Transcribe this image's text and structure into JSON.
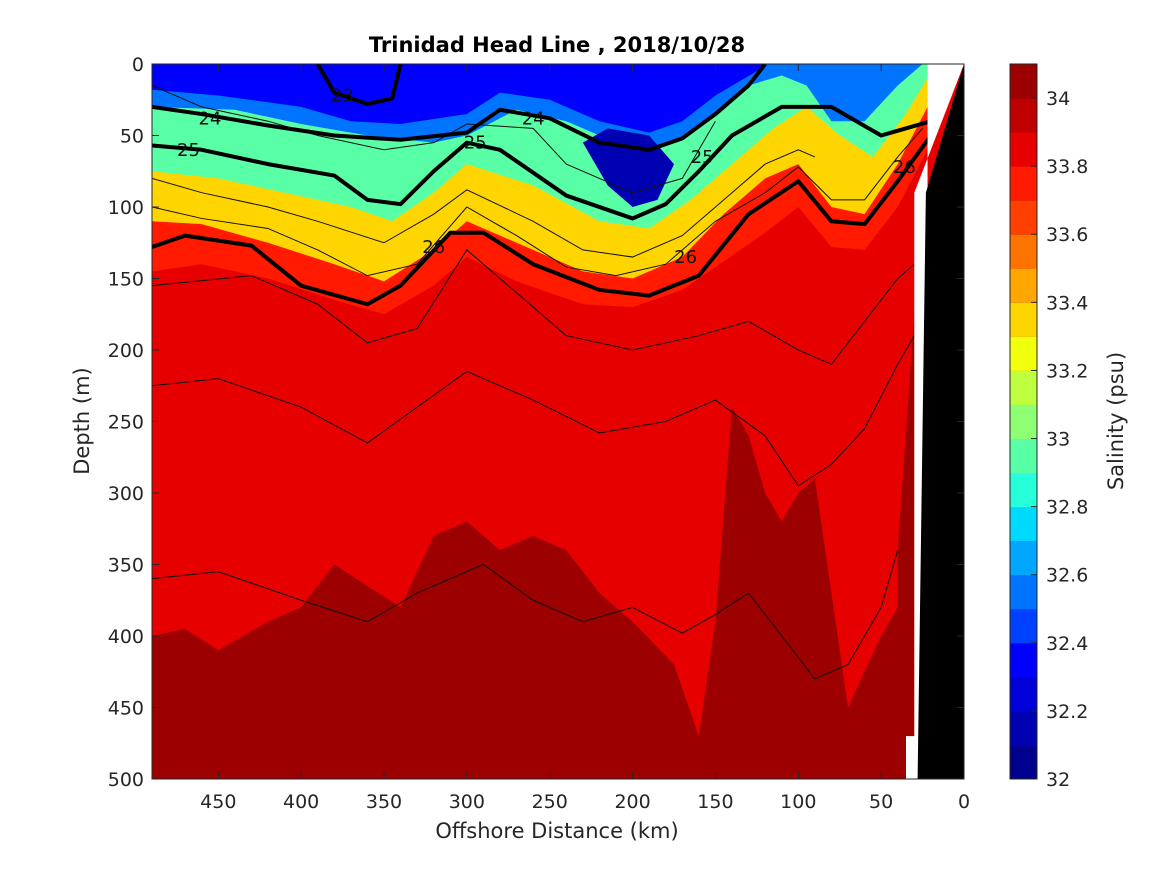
{
  "chart_data": {
    "type": "contour",
    "title": "Trinidad Head Line , 2018/10/28",
    "xlabel": "Offshore Distance (km)",
    "ylabel": "Depth (m)",
    "colorbar_label": "Salinity (psu)",
    "xlim": [
      490,
      0
    ],
    "ylim": [
      0,
      500
    ],
    "x_ticks": [
      "450",
      "400",
      "350",
      "300",
      "250",
      "200",
      "150",
      "100",
      "50",
      "0"
    ],
    "y_ticks": [
      "0",
      "50",
      "100",
      "150",
      "200",
      "250",
      "300",
      "350",
      "400",
      "450",
      "500"
    ],
    "colorbar_ticks": [
      "34",
      "33.8",
      "33.6",
      "33.4",
      "33.2",
      "33",
      "32.8",
      "32.6",
      "32.4",
      "32.2",
      "32"
    ],
    "colorbar_range": [
      32,
      34.1
    ],
    "colorbar_levels": [
      "#00008f",
      "#0000b3",
      "#0000d9",
      "#0000ff",
      "#0040ff",
      "#0073ff",
      "#00a6ff",
      "#00d9ff",
      "#26ffd9",
      "#59ffa6",
      "#8cff73",
      "#bfff40",
      "#f2ff0d",
      "#ffd500",
      "#ffa600",
      "#ff7300",
      "#ff4000",
      "#ff1a00",
      "#e60000",
      "#bf0000",
      "#9c0000"
    ],
    "isopycnal_labels": [
      {
        "label": "23",
        "x": 375,
        "y": 22
      },
      {
        "label": "24",
        "x": 455,
        "y": 38
      },
      {
        "label": "24",
        "x": 260,
        "y": 38
      },
      {
        "label": "25",
        "x": 468,
        "y": 60
      },
      {
        "label": "25",
        "x": 295,
        "y": 55
      },
      {
        "label": "25",
        "x": 158,
        "y": 65
      },
      {
        "label": "26",
        "x": 320,
        "y": 128
      },
      {
        "label": "26",
        "x": 168,
        "y": 135
      },
      {
        "label": "26",
        "x": 36,
        "y": 72
      }
    ],
    "isopycnals": [
      {
        "level": "23",
        "x": [
          390,
          380,
          360,
          345,
          340
        ],
        "y": [
          0,
          20,
          28,
          24,
          0
        ]
      },
      {
        "level": "24",
        "x": [
          490,
          460,
          420,
          380,
          340,
          300,
          280,
          250,
          220,
          190,
          170,
          150,
          130,
          120
        ],
        "y": [
          30,
          35,
          43,
          50,
          53,
          48,
          32,
          38,
          55,
          60,
          52,
          35,
          15,
          0
        ]
      },
      {
        "level": "25",
        "x": [
          490,
          460,
          420,
          380,
          360,
          340,
          320,
          300,
          280,
          240,
          200,
          180,
          160,
          140,
          110,
          80,
          50,
          20
        ],
        "y": [
          57,
          60,
          70,
          78,
          95,
          98,
          75,
          55,
          60,
          92,
          108,
          98,
          75,
          50,
          30,
          30,
          50,
          40
        ]
      },
      {
        "level": "26",
        "x": [
          490,
          470,
          430,
          400,
          360,
          340,
          310,
          290,
          260,
          220,
          190,
          160,
          130,
          100,
          80,
          60,
          40,
          20
        ],
        "y": [
          128,
          120,
          127,
          155,
          168,
          155,
          118,
          118,
          140,
          158,
          162,
          148,
          105,
          82,
          110,
          112,
          82,
          50
        ]
      }
    ],
    "thin_isohalines": [
      {
        "x": [
          490,
          430,
          390,
          360,
          330,
          300,
          270,
          240,
          200,
          160,
          130,
          100,
          80,
          60,
          40,
          30
        ],
        "y": [
          155,
          148,
          168,
          195,
          185,
          130,
          160,
          190,
          200,
          190,
          180,
          200,
          210,
          180,
          150,
          140
        ]
      },
      {
        "x": [
          490,
          450,
          400,
          360,
          330,
          300,
          260,
          220,
          180,
          150,
          120,
          100,
          80,
          60,
          40,
          30
        ],
        "y": [
          225,
          220,
          240,
          265,
          240,
          215,
          235,
          258,
          250,
          235,
          260,
          295,
          280,
          255,
          210,
          190
        ]
      },
      {
        "x": [
          490,
          450,
          400,
          360,
          330,
          290,
          260,
          230,
          200,
          170,
          150,
          130,
          110,
          90,
          70,
          50,
          40
        ],
        "y": [
          360,
          355,
          375,
          390,
          370,
          350,
          375,
          390,
          380,
          398,
          385,
          370,
          400,
          430,
          420,
          380,
          340
        ]
      },
      {
        "x": [
          490,
          460,
          420,
          390,
          350,
          320,
          300,
          260,
          240,
          200,
          170,
          150
        ],
        "y": [
          15,
          30,
          40,
          50,
          60,
          55,
          42,
          45,
          70,
          90,
          80,
          40
        ]
      },
      {
        "x": [
          490,
          460,
          420,
          390,
          350,
          320,
          300,
          260,
          230,
          200,
          170,
          140,
          120,
          100,
          90
        ],
        "y": [
          80,
          90,
          100,
          110,
          125,
          105,
          88,
          110,
          130,
          135,
          120,
          90,
          70,
          60,
          65
        ]
      },
      {
        "x": [
          490,
          460,
          420,
          390,
          360,
          330,
          300,
          270,
          240,
          210,
          180,
          150,
          120,
          100,
          80,
          60,
          40,
          25
        ],
        "y": [
          100,
          108,
          115,
          130,
          148,
          140,
          100,
          120,
          142,
          148,
          140,
          110,
          90,
          72,
          95,
          95,
          65,
          45
        ]
      }
    ],
    "color_field": {
      "description_levels_psu": [
        32.3,
        32.6,
        33.0,
        33.4,
        33.7,
        33.85,
        33.95,
        34.05
      ],
      "bands": [
        {
          "salinity": 32.55,
          "x": [
            490,
            440,
            400,
            360,
            320,
            300,
            270,
            240,
            210,
            190,
            170,
            150,
            130,
            110,
            95,
            80,
            60,
            40,
            25
          ],
          "y": [
            30,
            32,
            42,
            50,
            55,
            50,
            32,
            40,
            55,
            62,
            52,
            35,
            15,
            8,
            15,
            40,
            40,
            15,
            0
          ]
        },
        {
          "salinity": 33.0,
          "x": [
            490,
            450,
            410,
            370,
            345,
            320,
            300,
            260,
            220,
            190,
            165,
            140,
            115,
            95,
            75,
            55,
            35,
            22
          ],
          "y": [
            75,
            80,
            90,
            100,
            110,
            90,
            70,
            85,
            110,
            115,
            95,
            70,
            45,
            30,
            50,
            65,
            35,
            10
          ]
        },
        {
          "salinity": 33.4,
          "x": [
            490,
            460,
            420,
            380,
            350,
            320,
            300,
            270,
            230,
            200,
            170,
            145,
            120,
            100,
            80,
            60,
            40,
            22
          ],
          "y": [
            110,
            112,
            125,
            140,
            152,
            130,
            110,
            125,
            145,
            150,
            135,
            105,
            80,
            70,
            100,
            105,
            70,
            30
          ]
        },
        {
          "salinity": 33.7,
          "x": [
            490,
            460,
            420,
            380,
            350,
            320,
            300,
            270,
            230,
            200,
            170,
            145,
            120,
            100,
            80,
            60,
            40,
            22
          ],
          "y": [
            145,
            140,
            150,
            165,
            175,
            155,
            135,
            152,
            168,
            170,
            158,
            138,
            118,
            100,
            128,
            130,
            100,
            60
          ]
        },
        {
          "salinity": 33.85,
          "x": [
            490,
            460,
            420,
            380,
            350,
            320,
            300,
            270,
            230,
            200,
            170,
            140,
            115,
            100,
            80,
            60,
            40,
            22
          ],
          "y": [
            160,
            155,
            165,
            180,
            195,
            175,
            150,
            170,
            190,
            195,
            185,
            160,
            140,
            125,
            150,
            150,
            120,
            80
          ]
        }
      ],
      "deep_patches": [
        {
          "salinity": 34.05,
          "x": [
            490,
            470,
            450,
            420,
            400,
            380,
            360,
            340,
            320,
            300,
            280,
            260,
            240,
            220,
            200,
            175,
            160,
            150,
            140,
            130,
            120,
            110,
            100,
            90,
            70,
            50,
            40,
            30,
            30,
            490
          ],
          "y": [
            400,
            395,
            410,
            390,
            380,
            350,
            365,
            380,
            330,
            320,
            340,
            330,
            340,
            370,
            390,
            420,
            470,
            390,
            240,
            260,
            300,
            320,
            300,
            290,
            450,
            400,
            380,
            175,
            500,
            500
          ]
        },
        {
          "salinity": 34.15,
          "x": [
            310,
            300,
            290,
            300,
            310
          ],
          "y": [
            470,
            455,
            470,
            500,
            500
          ]
        },
        {
          "salinity": 34.15,
          "x": [
            145,
            135,
            125,
            135
          ],
          "y": [
            470,
            455,
            480,
            500
          ]
        },
        {
          "salinity": 34.15,
          "x": [
            40,
            30,
            28,
            40
          ],
          "y": [
            340,
            175,
            500,
            500
          ]
        }
      ]
    },
    "bottom_topography": {
      "x": [
        23,
        0,
        0,
        23,
        28
      ],
      "y": [
        500,
        500,
        0,
        90,
        500
      ]
    },
    "masked_nearshore": {
      "x": [
        35,
        22,
        22,
        0,
        30,
        30,
        35
      ],
      "y": [
        500,
        500,
        0,
        0,
        90,
        470,
        470
      ]
    }
  }
}
